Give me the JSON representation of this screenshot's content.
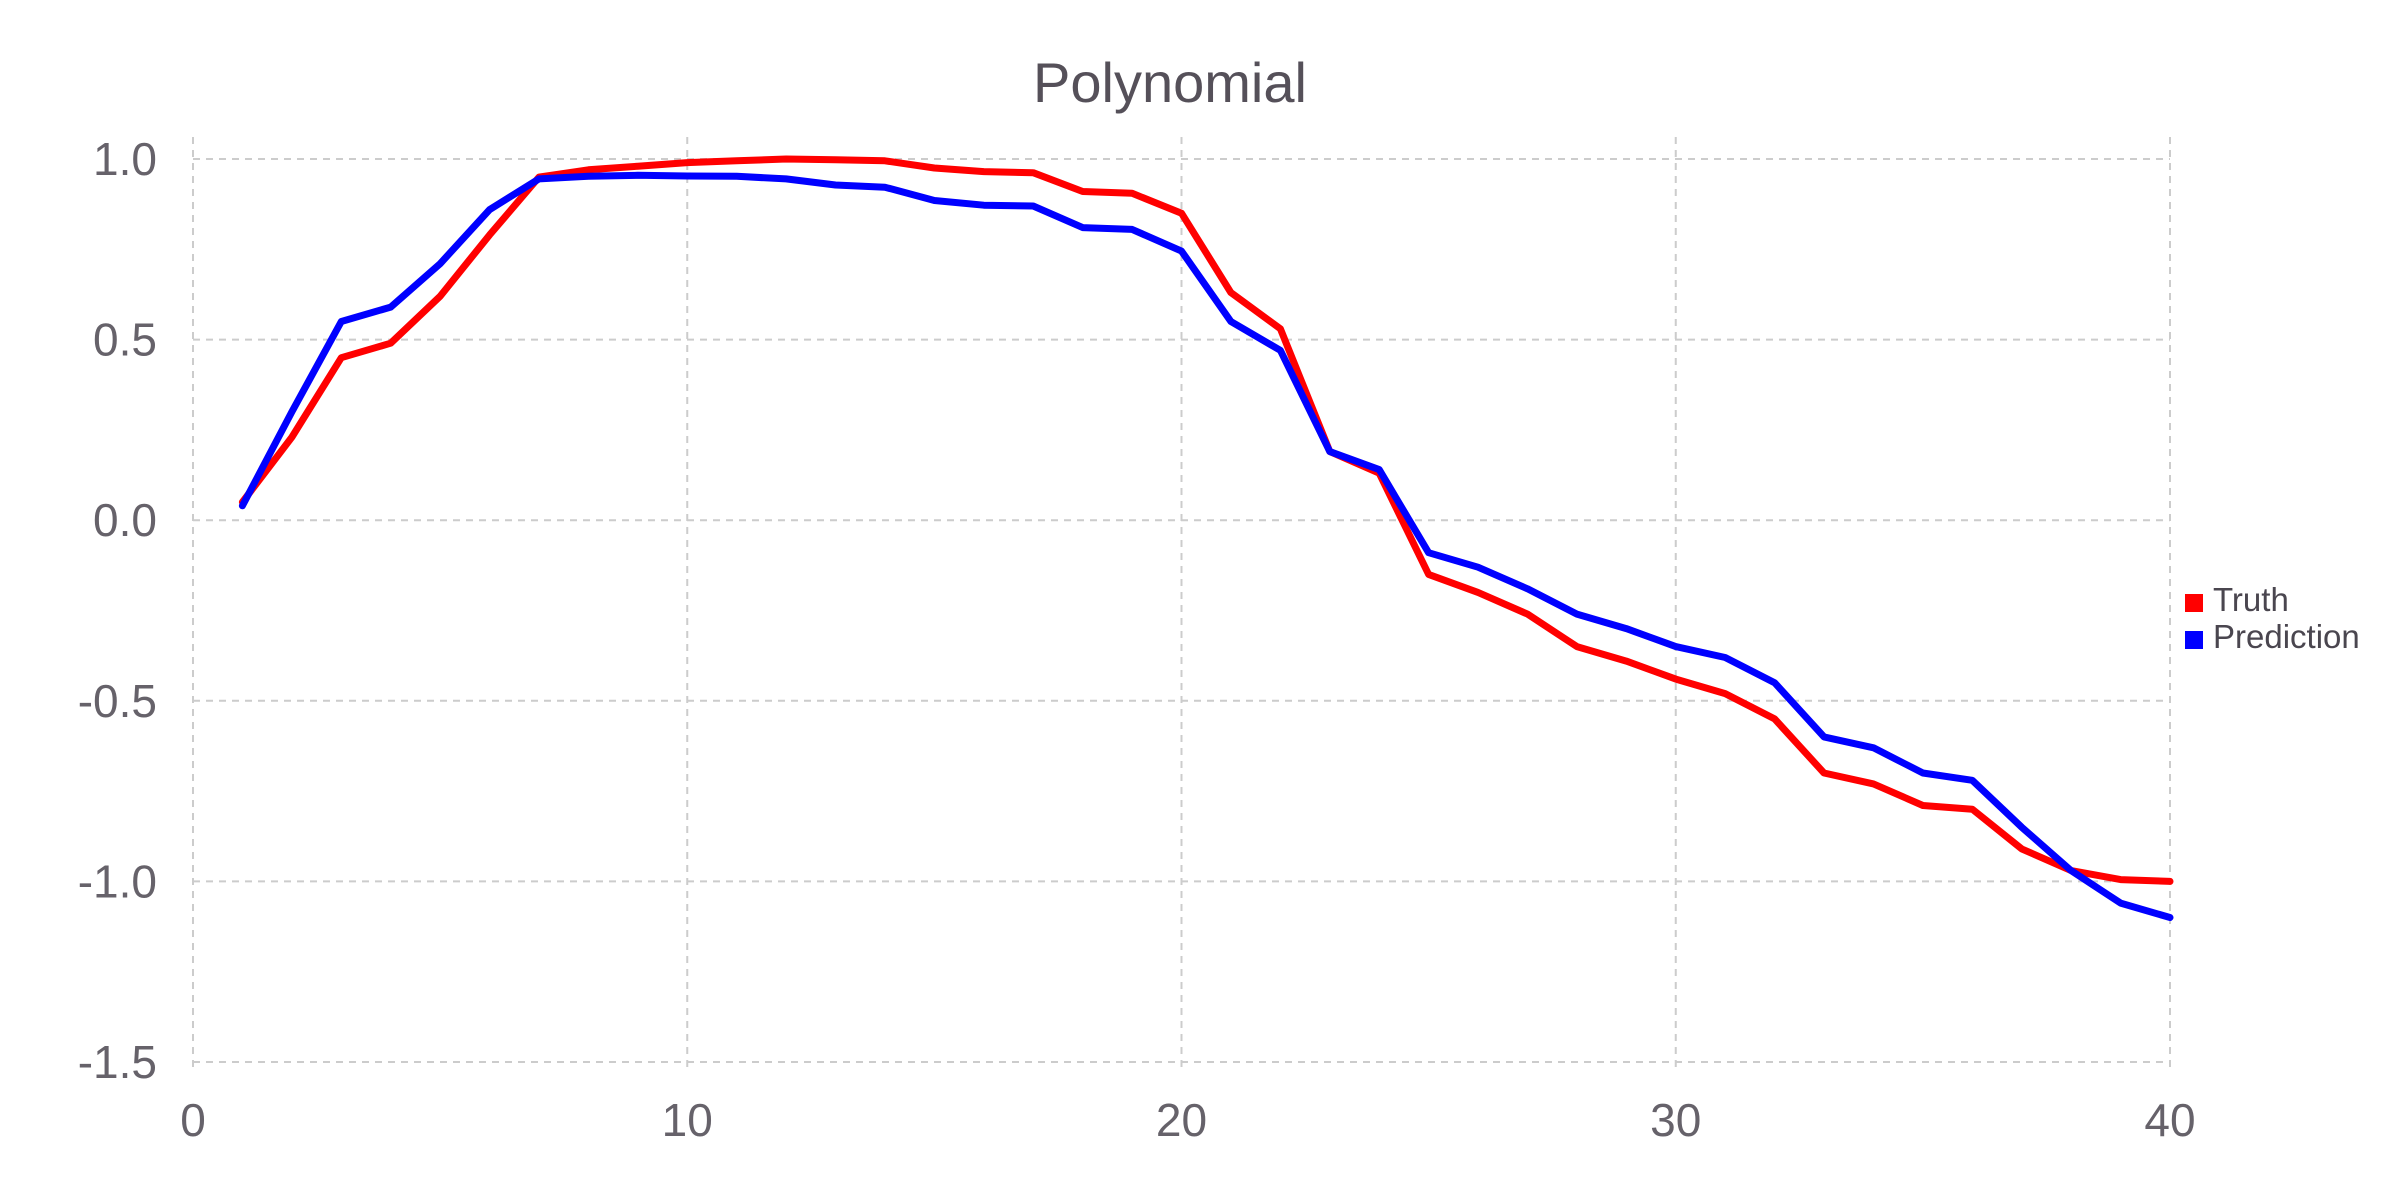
{
  "chart_data": {
    "type": "line",
    "title": "Polynomial",
    "xlabel": "",
    "ylabel": "",
    "xlim": [
      0,
      40
    ],
    "ylim": [
      -1.5,
      1.0
    ],
    "xticks": [
      "0",
      "10",
      "20",
      "30",
      "40"
    ],
    "yticks": [
      "1.0",
      "0.5",
      "0.0",
      "-0.5",
      "-1.0",
      "-1.5"
    ],
    "grid": true,
    "legend_position": "right",
    "x": [
      1,
      2,
      3,
      4,
      5,
      6,
      7,
      8,
      9,
      10,
      11,
      12,
      13,
      14,
      15,
      16,
      17,
      18,
      19,
      20,
      21,
      22,
      23,
      24,
      25,
      26,
      27,
      28,
      29,
      30,
      31,
      32,
      33,
      34,
      35,
      36,
      37,
      38,
      39,
      40
    ],
    "series": [
      {
        "name": "Truth",
        "color": "#ff0000",
        "values": [
          0.05,
          0.23,
          0.45,
          0.49,
          0.62,
          0.79,
          0.95,
          0.97,
          0.98,
          0.99,
          0.995,
          1.0,
          0.998,
          0.995,
          0.975,
          0.965,
          0.962,
          0.91,
          0.905,
          0.85,
          0.63,
          0.53,
          0.19,
          0.13,
          -0.15,
          -0.2,
          -0.26,
          -0.35,
          -0.39,
          -0.44,
          -0.48,
          -0.55,
          -0.7,
          -0.73,
          -0.79,
          -0.8,
          -0.91,
          -0.97,
          -0.995,
          -1.0
        ]
      },
      {
        "name": "Prediction",
        "color": "#0000ff",
        "values": [
          0.04,
          0.3,
          0.55,
          0.59,
          0.71,
          0.86,
          0.945,
          0.952,
          0.955,
          0.953,
          0.952,
          0.945,
          0.928,
          0.922,
          0.885,
          0.872,
          0.87,
          0.81,
          0.805,
          0.745,
          0.55,
          0.47,
          0.19,
          0.14,
          -0.09,
          -0.13,
          -0.19,
          -0.26,
          -0.3,
          -0.35,
          -0.38,
          -0.45,
          -0.6,
          -0.63,
          -0.7,
          -0.72,
          -0.85,
          -0.97,
          -1.06,
          -1.1
        ]
      }
    ]
  }
}
